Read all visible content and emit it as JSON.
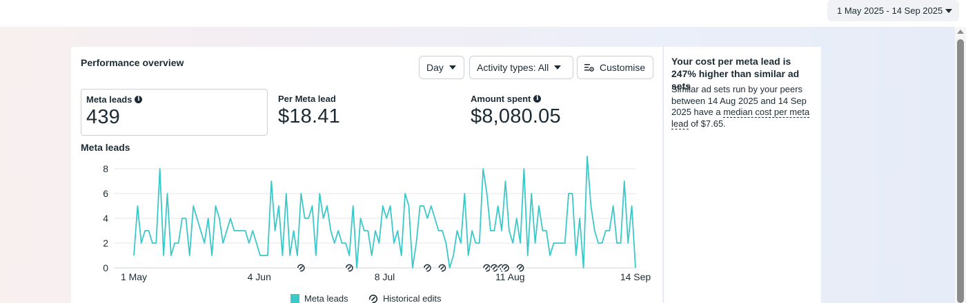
{
  "header": {
    "date_range": "1 May 2025 - 14 Sep 2025"
  },
  "card": {
    "title": "Performance overview",
    "controls": {
      "day_label": "Day",
      "activity_label": "Activity types: All",
      "customise_label": "Customise"
    },
    "metrics": [
      {
        "label": "Meta leads",
        "value": "439",
        "info": true,
        "selected": true
      },
      {
        "label": "Per Meta lead",
        "value": "$18.41",
        "info": false,
        "selected": false
      },
      {
        "label": "Amount spent",
        "value": "$8,080.05",
        "info": true,
        "selected": false
      }
    ],
    "chart_title": "Meta leads"
  },
  "chart_data": {
    "type": "line",
    "series": [
      {
        "name": "Meta leads",
        "color": "#3ac8c8",
        "values": [
          1,
          5,
          2,
          3,
          3,
          2,
          2,
          8,
          1,
          6,
          1,
          2,
          2,
          4,
          4,
          1,
          5,
          4,
          3,
          2,
          4,
          1,
          5,
          4,
          2,
          3,
          4,
          3,
          3,
          3,
          3,
          2,
          3,
          2,
          1,
          1,
          1,
          7,
          3,
          5,
          1,
          6,
          1,
          3,
          1,
          6,
          4,
          4,
          5,
          1,
          6,
          4,
          5,
          3,
          2,
          3,
          2,
          2,
          1,
          5,
          0,
          4,
          3,
          3,
          1,
          3,
          2,
          5,
          4,
          5,
          2,
          3,
          1,
          6,
          5,
          0,
          2,
          5,
          5,
          4,
          5,
          4,
          3,
          3,
          2,
          0,
          1,
          3,
          2,
          6,
          1,
          3,
          2,
          2,
          8,
          6,
          3,
          3,
          5,
          3,
          7,
          3,
          2,
          4,
          2,
          8,
          1,
          6,
          2,
          5,
          3,
          3,
          1,
          2,
          2,
          2,
          2,
          6,
          6,
          1,
          4,
          0,
          9,
          5,
          3,
          2,
          2,
          3,
          3,
          5,
          2,
          2,
          7,
          2,
          5,
          0
        ]
      }
    ],
    "x_tick_labels": [
      "1 May",
      "4 Jun",
      "8 Jul",
      "11 Aug",
      "14 Sep"
    ],
    "y_ticks": [
      0,
      2,
      4,
      6,
      8
    ],
    "ylim": [
      0,
      9
    ],
    "grid": true,
    "historical_edit_days": [
      45,
      58,
      79,
      83,
      95,
      97,
      99,
      100,
      104
    ],
    "legend": [
      {
        "label": "Meta leads",
        "kind": "swatch"
      },
      {
        "label": "Historical edits",
        "kind": "edit-icon"
      }
    ],
    "legend_position": "bottom"
  },
  "side": {
    "title": "Your cost per meta lead is 247% higher than similar ad sets",
    "body_pre": "Similar ad sets run by your peers between 14 Aug 2025 and 14 Sep 2025 have a ",
    "body_link": "median cost per meta lead",
    "body_post": " of $7.65."
  },
  "icons": {
    "day_caret": "caret-down-icon",
    "activity_caret": "caret-down-icon",
    "customise": "customise-sliders-icon",
    "info": "info-icon",
    "edit_marker": "historical-edit-icon"
  }
}
